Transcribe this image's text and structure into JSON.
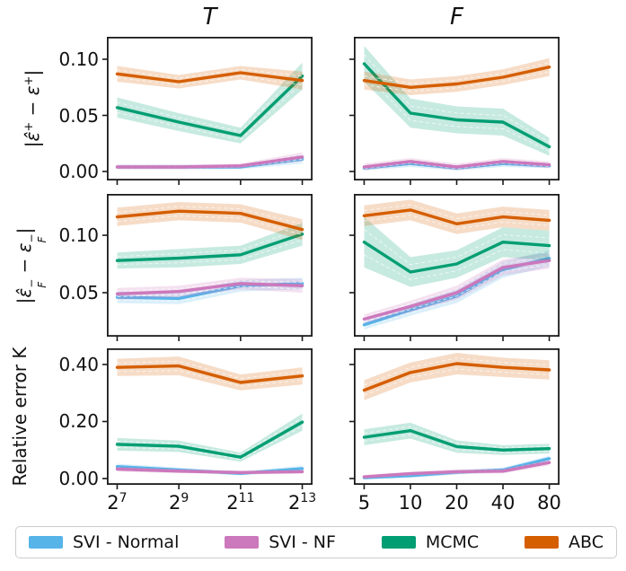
{
  "figure": {
    "background": "#ffffff"
  },
  "palette": {
    "svi_normal": "#56B4E9",
    "svi_nf": "#CC78BC",
    "mcmc": "#029E73",
    "abc": "#D55E00",
    "axis_color": "#1a1a1a",
    "band_opacity": 0.22
  },
  "columns": [
    {
      "title": "T"
    },
    {
      "title": "F"
    }
  ],
  "legend": {
    "entries": [
      {
        "key": "svi_normal",
        "label": "SVI - Normal"
      },
      {
        "key": "svi_nf",
        "label": "SVI - NF"
      },
      {
        "key": "mcmc",
        "label": "MCMC"
      },
      {
        "key": "abc",
        "label": "ABC"
      }
    ]
  },
  "ylabels": [
    {
      "parts": [
        {
          "t": "|ε̂"
        },
        {
          "sup": "+"
        },
        {
          "t": " − ε"
        },
        {
          "sup": "+"
        },
        {
          "t": "|"
        }
      ]
    },
    {
      "parts": [
        {
          "t": "|ε̂"
        },
        {
          "ss": {
            "sup": "−",
            "sub": "F"
          }
        },
        {
          "t": " − ε"
        },
        {
          "ss": {
            "sup": "−",
            "sub": "F"
          }
        },
        {
          "t": "|"
        }
      ]
    },
    {
      "parts": [
        {
          "t": "Relative error K"
        }
      ]
    }
  ],
  "chart_data": [
    {
      "id": "err-plus-T",
      "type": "line",
      "row": 0,
      "col": 0,
      "title": "T",
      "xscale": "log2",
      "x": [
        128,
        512,
        2048,
        8192
      ],
      "ylim": [
        -0.008,
        0.12
      ],
      "yticks": [
        0,
        0.05,
        0.1
      ],
      "yticklabels": [
        "0.00",
        "0.05",
        "0.10"
      ],
      "series": [
        {
          "key": "svi_normal",
          "name": "SVI - Normal",
          "values": [
            0.004,
            0.004,
            0.004,
            0.011
          ],
          "band": [
            0.002,
            0.002,
            0.002,
            0.004
          ]
        },
        {
          "key": "svi_nf",
          "name": "SVI - NF",
          "values": [
            0.004,
            0.004,
            0.005,
            0.013
          ],
          "band": [
            0.002,
            0.002,
            0.002,
            0.004
          ]
        },
        {
          "key": "mcmc",
          "name": "MCMC",
          "values": [
            0.057,
            0.044,
            0.032,
            0.085
          ],
          "band": [
            0.009,
            0.008,
            0.007,
            0.012
          ]
        },
        {
          "key": "abc",
          "name": "ABC",
          "values": [
            0.087,
            0.08,
            0.088,
            0.081
          ],
          "band": [
            0.007,
            0.006,
            0.006,
            0.008
          ]
        }
      ]
    },
    {
      "id": "err-plus-F",
      "type": "line",
      "row": 0,
      "col": 1,
      "title": "F",
      "xscale": "log2",
      "x": [
        5,
        10,
        20,
        40,
        80
      ],
      "ylim": [
        -0.008,
        0.12
      ],
      "yticks": [
        0,
        0.05,
        0.1
      ],
      "yticklabels": [],
      "series": [
        {
          "key": "svi_normal",
          "name": "SVI - Normal",
          "values": [
            0.003,
            0.007,
            0.003,
            0.007,
            0.005
          ],
          "band": [
            0.002,
            0.003,
            0.002,
            0.003,
            0.002
          ]
        },
        {
          "key": "svi_nf",
          "name": "SVI - NF",
          "values": [
            0.004,
            0.009,
            0.004,
            0.009,
            0.006
          ],
          "band": [
            0.003,
            0.003,
            0.003,
            0.003,
            0.003
          ]
        },
        {
          "key": "mcmc",
          "name": "MCMC",
          "values": [
            0.096,
            0.052,
            0.046,
            0.044,
            0.022
          ],
          "band": [
            0.016,
            0.013,
            0.012,
            0.012,
            0.008
          ]
        },
        {
          "key": "abc",
          "name": "ABC",
          "values": [
            0.081,
            0.075,
            0.078,
            0.084,
            0.093
          ],
          "band": [
            0.008,
            0.007,
            0.007,
            0.007,
            0.008
          ]
        }
      ]
    },
    {
      "id": "err-minus-T",
      "type": "line",
      "row": 1,
      "col": 0,
      "xscale": "log2",
      "x": [
        128,
        512,
        2048,
        8192
      ],
      "ylim": [
        0.0117,
        0.136
      ],
      "yticks": [
        0.05,
        0.1
      ],
      "yticklabels": [
        "0.05",
        "0.10"
      ],
      "series": [
        {
          "key": "svi_normal",
          "name": "SVI - Normal",
          "values": [
            0.046,
            0.045,
            0.056,
            0.058
          ],
          "band": [
            0.005,
            0.005,
            0.005,
            0.005
          ]
        },
        {
          "key": "svi_nf",
          "name": "SVI - NF",
          "values": [
            0.049,
            0.051,
            0.058,
            0.056
          ],
          "band": [
            0.005,
            0.005,
            0.005,
            0.006
          ]
        },
        {
          "key": "mcmc",
          "name": "MCMC",
          "values": [
            0.078,
            0.08,
            0.083,
            0.101
          ],
          "band": [
            0.007,
            0.008,
            0.008,
            0.01
          ]
        },
        {
          "key": "abc",
          "name": "ABC",
          "values": [
            0.116,
            0.121,
            0.119,
            0.105
          ],
          "band": [
            0.008,
            0.008,
            0.008,
            0.009
          ]
        }
      ]
    },
    {
      "id": "err-minus-F",
      "type": "line",
      "row": 1,
      "col": 1,
      "xscale": "log2",
      "x": [
        5,
        10,
        20,
        40,
        80
      ],
      "ylim": [
        0.0117,
        0.136
      ],
      "yticks": [
        0.05,
        0.1
      ],
      "yticklabels": [],
      "series": [
        {
          "key": "svi_normal",
          "name": "SVI - Normal",
          "values": [
            0.022,
            0.035,
            0.047,
            0.07,
            0.08
          ],
          "band": [
            0.004,
            0.005,
            0.006,
            0.007,
            0.007
          ]
        },
        {
          "key": "svi_nf",
          "name": "SVI - NF",
          "values": [
            0.027,
            0.038,
            0.05,
            0.072,
            0.078
          ],
          "band": [
            0.004,
            0.005,
            0.006,
            0.007,
            0.007
          ]
        },
        {
          "key": "mcmc",
          "name": "MCMC",
          "values": [
            0.094,
            0.068,
            0.075,
            0.094,
            0.091
          ],
          "band": [
            0.022,
            0.013,
            0.012,
            0.013,
            0.013
          ]
        },
        {
          "key": "abc",
          "name": "ABC",
          "values": [
            0.117,
            0.122,
            0.11,
            0.116,
            0.113
          ],
          "band": [
            0.009,
            0.009,
            0.009,
            0.009,
            0.009
          ]
        }
      ]
    },
    {
      "id": "rel-err-K-T",
      "type": "line",
      "row": 2,
      "col": 0,
      "xscale": "log2",
      "x": [
        128,
        512,
        2048,
        8192
      ],
      "xticklabels": [
        {
          "base": "2",
          "exp": "7"
        },
        {
          "base": "2",
          "exp": "9"
        },
        {
          "base": "2",
          "exp": "11"
        },
        {
          "base": "2",
          "exp": "13"
        }
      ],
      "ylim": [
        -0.022,
        0.4566
      ],
      "yticks": [
        0,
        0.2,
        0.4
      ],
      "yticklabels": [
        "0.00",
        "0.20",
        "0.40"
      ],
      "series": [
        {
          "key": "svi_normal",
          "name": "SVI - Normal",
          "values": [
            0.042,
            0.03,
            0.018,
            0.035
          ],
          "band": [
            0.01,
            0.008,
            0.007,
            0.01
          ]
        },
        {
          "key": "svi_nf",
          "name": "SVI - NF",
          "values": [
            0.033,
            0.026,
            0.021,
            0.024
          ],
          "band": [
            0.008,
            0.007,
            0.006,
            0.007
          ]
        },
        {
          "key": "mcmc",
          "name": "MCMC",
          "values": [
            0.12,
            0.113,
            0.075,
            0.198
          ],
          "band": [
            0.022,
            0.02,
            0.016,
            0.03
          ]
        },
        {
          "key": "abc",
          "name": "ABC",
          "values": [
            0.39,
            0.395,
            0.337,
            0.36
          ],
          "band": [
            0.03,
            0.033,
            0.028,
            0.03
          ]
        }
      ]
    },
    {
      "id": "rel-err-K-F",
      "type": "line",
      "row": 2,
      "col": 1,
      "xscale": "log2",
      "x": [
        5,
        10,
        20,
        40,
        80
      ],
      "xticklabels": [
        "5",
        "10",
        "20",
        "40",
        "80"
      ],
      "ylim": [
        -0.022,
        0.4566
      ],
      "yticks": [
        0,
        0.2,
        0.4
      ],
      "yticklabels": [],
      "series": [
        {
          "key": "svi_normal",
          "name": "SVI - Normal",
          "values": [
            0.003,
            0.01,
            0.022,
            0.03,
            0.07
          ],
          "band": [
            0.006,
            0.007,
            0.008,
            0.008,
            0.01
          ]
        },
        {
          "key": "svi_nf",
          "name": "SVI - NF",
          "values": [
            0.006,
            0.017,
            0.024,
            0.026,
            0.056
          ],
          "band": [
            0.006,
            0.007,
            0.008,
            0.008,
            0.01
          ]
        },
        {
          "key": "mcmc",
          "name": "MCMC",
          "values": [
            0.145,
            0.168,
            0.112,
            0.1,
            0.105
          ],
          "band": [
            0.028,
            0.028,
            0.022,
            0.017,
            0.017
          ]
        },
        {
          "key": "abc",
          "name": "ABC",
          "values": [
            0.31,
            0.372,
            0.403,
            0.39,
            0.381
          ],
          "band": [
            0.035,
            0.035,
            0.038,
            0.034,
            0.034
          ]
        }
      ]
    }
  ]
}
